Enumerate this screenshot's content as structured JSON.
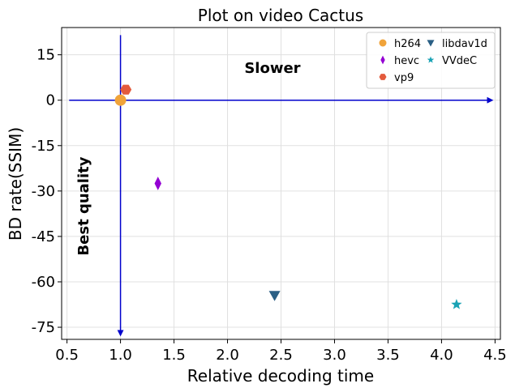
{
  "chart_data": {
    "type": "scatter",
    "title": "Plot on video Cactus",
    "xlabel": "Relative decoding time",
    "ylabel": "BD rate(SSIM)",
    "xlim": [
      0.45,
      4.55
    ],
    "ylim": [
      -79,
      24
    ],
    "xticks": [
      0.5,
      1.0,
      1.5,
      2.0,
      2.5,
      3.0,
      3.5,
      4.0,
      4.5
    ],
    "xtick_labels": [
      "0.5",
      "1.0",
      "1.5",
      "2.0",
      "2.5",
      "3.0",
      "3.5",
      "4.0",
      "4.5"
    ],
    "yticks": [
      15,
      0,
      -15,
      -30,
      -45,
      -60,
      -75
    ],
    "ytick_labels": [
      "15",
      "0",
      "-15",
      "-30",
      "-45",
      "-60",
      "-75"
    ],
    "grid": true,
    "legend_position": "top-right",
    "series": [
      {
        "name": "h264",
        "color": "#f0a33a",
        "marker": "circle",
        "points": [
          {
            "x": 1.0,
            "y": 0.0
          }
        ]
      },
      {
        "name": "hevc",
        "color": "#9400d3",
        "marker": "thin-diamond",
        "points": [
          {
            "x": 1.35,
            "y": -27.5
          }
        ]
      },
      {
        "name": "vp9",
        "color": "#e35a3c",
        "marker": "hexagon",
        "points": [
          {
            "x": 1.05,
            "y": 3.5
          }
        ]
      },
      {
        "name": "libdav1d",
        "color": "#2a5f85",
        "marker": "triangle-down",
        "points": [
          {
            "x": 2.44,
            "y": -64.5
          }
        ]
      },
      {
        "name": "VVdeC",
        "color": "#1aa3b5",
        "marker": "star",
        "points": [
          {
            "x": 4.14,
            "y": -67.5
          }
        ]
      }
    ],
    "annotations": [
      {
        "text": "Slower",
        "x": 2.42,
        "y": 9,
        "rotation": 0
      },
      {
        "text": "Best quality",
        "x": 0.7,
        "y": -35,
        "rotation": 270
      }
    ],
    "arrows": [
      {
        "from": [
          0.52,
          0
        ],
        "to": [
          4.47,
          0
        ],
        "color": "#0000cc"
      },
      {
        "from": [
          1.0,
          21.5
        ],
        "to": [
          1.0,
          -77.5
        ],
        "color": "#0000cc"
      }
    ]
  }
}
